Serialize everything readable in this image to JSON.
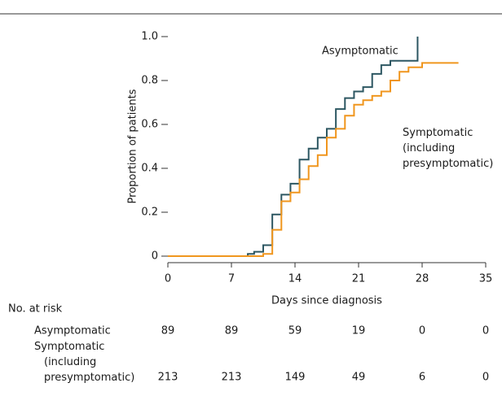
{
  "chart_data": {
    "type": "step",
    "xlabel": "Days since diagnosis",
    "ylabel": "Proportion of patients",
    "xlim": [
      0,
      35
    ],
    "xticks": [
      0,
      7,
      14,
      21,
      28,
      35
    ],
    "ylim": [
      0,
      1
    ],
    "yticks": [
      0,
      0.2,
      0.4,
      0.6,
      0.8,
      {
        "value": 1,
        "label": "1.0"
      }
    ],
    "series": [
      {
        "name": "Asymptomatic",
        "color": "#2d5762",
        "x": [
          0,
          8.8,
          9.5,
          10.5,
          11.5,
          12.5,
          13.5,
          14.5,
          15.5,
          16.5,
          17.5,
          18.5,
          19.5,
          20.5,
          21.5,
          22.5,
          23.5,
          24.5,
          27.5
        ],
        "values": [
          0,
          0.01,
          0.02,
          0.05,
          0.19,
          0.28,
          0.33,
          0.44,
          0.49,
          0.54,
          0.58,
          0.67,
          0.72,
          0.75,
          0.77,
          0.83,
          0.87,
          0.89,
          1.0
        ],
        "at_risk": [
          89,
          89,
          59,
          19,
          0,
          0
        ]
      },
      {
        "name": "Symptomatic (including presymptomatic)",
        "color": "#f0961e",
        "x": [
          0,
          10.5,
          11.5,
          12.5,
          13.5,
          14.5,
          15.5,
          16.5,
          17.5,
          18.5,
          19.5,
          20.5,
          21.5,
          22.5,
          23.5,
          24.5,
          25.5,
          26.5,
          28,
          32
        ],
        "values": [
          0,
          0.01,
          0.12,
          0.25,
          0.29,
          0.35,
          0.41,
          0.46,
          0.54,
          0.58,
          0.64,
          0.69,
          0.71,
          0.73,
          0.75,
          0.8,
          0.84,
          0.86,
          0.88,
          0.88
        ],
        "at_risk": [
          213,
          213,
          149,
          49,
          6,
          0
        ]
      }
    ],
    "risk_table_title": "No. at risk"
  }
}
